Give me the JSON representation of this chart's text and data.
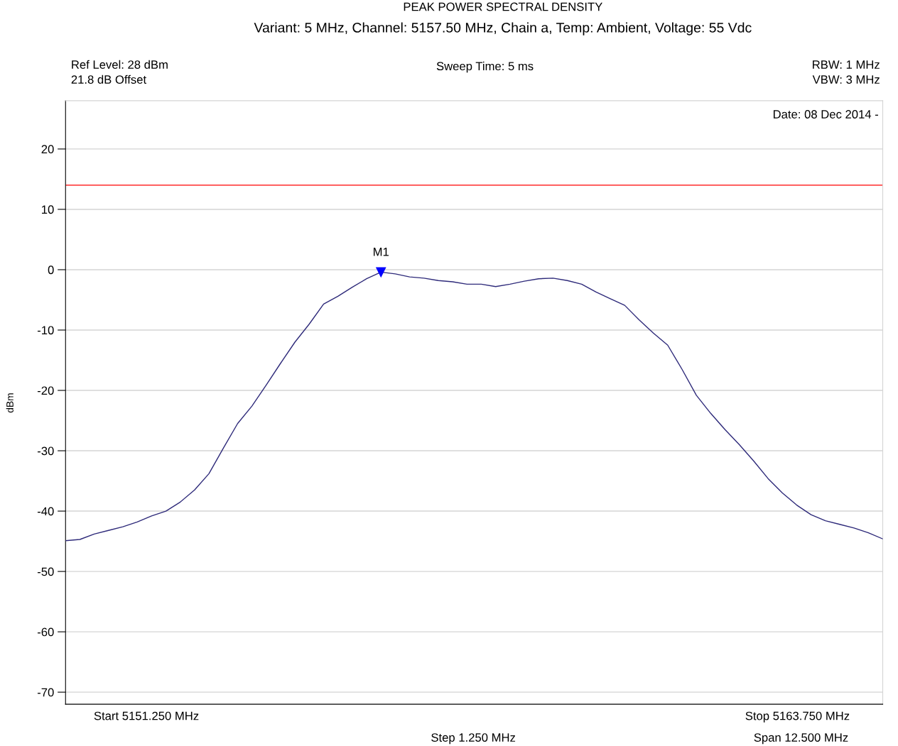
{
  "chart_data": {
    "type": "line",
    "title": "PEAK POWER SPECTRAL DENSITY",
    "subtitle": "Variant: 5 MHz, Channel: 5157.50 MHz, Chain a, Temp: Ambient, Voltage: 55 Vdc",
    "ylabel": "dBm",
    "annotations": [
      "Ref Level: 28 dBm",
      "21.8 dB Offset",
      "Sweep Time: 5 ms",
      "RBW: 1 MHz",
      "VBW: 3 MHz",
      "Date: 08 Dec 2014 -",
      "Start 5151.250 MHz",
      "Step 1.250 MHz",
      "Stop 5163.750 MHz",
      "Span 12.500 MHz",
      "M1"
    ],
    "categories": [
      null,
      null,
      null,
      null,
      null,
      null,
      null,
      null,
      null,
      null,
      null,
      null,
      null,
      null,
      null,
      null,
      null,
      null,
      null,
      null,
      null,
      null,
      null,
      null,
      null,
      null,
      null,
      null,
      null,
      null,
      null,
      null,
      null,
      null,
      null,
      null,
      null,
      null,
      null,
      null,
      null,
      null,
      null,
      null,
      null,
      null,
      null,
      null,
      null,
      null,
      null,
      null,
      null,
      null,
      null,
      null,
      null,
      null
    ],
    "series": [
      {
        "color": "#2e2a7a",
        "values": [
          -44.9,
          -44.7,
          -43.8,
          -43.2,
          -42.6,
          -41.8,
          -40.8,
          -40.0,
          -38.5,
          -36.5,
          -33.8,
          -29.6,
          -25.5,
          -22.6,
          -19.1,
          -15.5,
          -12.0,
          -9.0,
          -5.7,
          -4.4,
          -2.9,
          -1.5,
          -0.4,
          -0.7,
          -1.2,
          -1.4,
          -1.8,
          -2.0,
          -2.4,
          -2.4,
          -2.8,
          -2.4,
          -1.9,
          -1.5,
          -1.4,
          -1.8,
          -2.4,
          -3.7,
          -4.8,
          -5.9,
          -8.3,
          -10.5,
          -12.5,
          -16.5,
          -20.8,
          -23.8,
          -26.5,
          -29.0,
          -31.7,
          -34.6,
          -37.0,
          -39.0,
          -40.6,
          -41.6,
          -42.2,
          -42.8,
          -43.6,
          -44.6
        ]
      }
    ],
    "ref_lines": [
      {
        "axis": "y",
        "value": 14,
        "color": "#ff0000"
      }
    ],
    "ylim": [
      -72,
      28
    ],
    "yticks": [
      20,
      10,
      0,
      -10,
      -20,
      -30,
      -40,
      -50,
      -60,
      -70
    ],
    "tick_labels": "y",
    "grid": "y"
  }
}
